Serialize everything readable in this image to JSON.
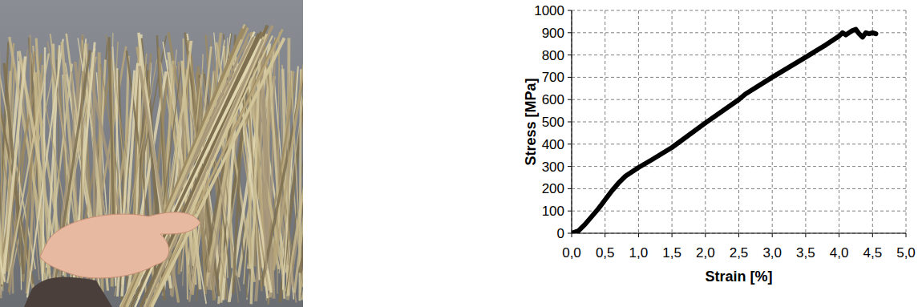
{
  "chart_data": {
    "type": "line",
    "x_label": "Strain [%]",
    "y_label": "Stress [MPa]",
    "x": [
      0.0,
      0.1,
      0.2,
      0.3,
      0.4,
      0.5,
      0.6,
      0.7,
      0.8,
      1.0,
      1.2,
      1.5,
      2.0,
      2.5,
      2.6,
      3.0,
      3.5,
      3.8,
      4.0,
      4.05,
      4.1,
      4.2,
      4.25,
      4.3,
      4.35,
      4.4,
      4.45,
      4.5,
      4.55
    ],
    "values": [
      0,
      10,
      40,
      75,
      110,
      150,
      190,
      225,
      255,
      295,
      330,
      385,
      495,
      600,
      625,
      700,
      790,
      845,
      885,
      900,
      890,
      910,
      915,
      895,
      880,
      900,
      895,
      900,
      895
    ],
    "color": "#000000",
    "xlim": [
      0,
      5
    ],
    "xticks": [
      {
        "value": 0,
        "label": "0,0"
      },
      {
        "value": 0.5,
        "label": "0,5"
      },
      {
        "value": 1,
        "label": "1,0"
      },
      {
        "value": 1.5,
        "label": "1,5"
      },
      {
        "value": 2,
        "label": "2,0"
      },
      {
        "value": 2.5,
        "label": "2,5"
      },
      {
        "value": 3,
        "label": "3,0"
      },
      {
        "value": 3.5,
        "label": "3,5"
      },
      {
        "value": 4,
        "label": "4,0"
      },
      {
        "value": 4.5,
        "label": "4,5"
      },
      {
        "value": 5,
        "label": "5,0"
      }
    ],
    "ylim": [
      0,
      1000
    ],
    "yticks": [
      0,
      100,
      200,
      300,
      400,
      500,
      600,
      700,
      800,
      900,
      1000
    ],
    "grid": true
  }
}
